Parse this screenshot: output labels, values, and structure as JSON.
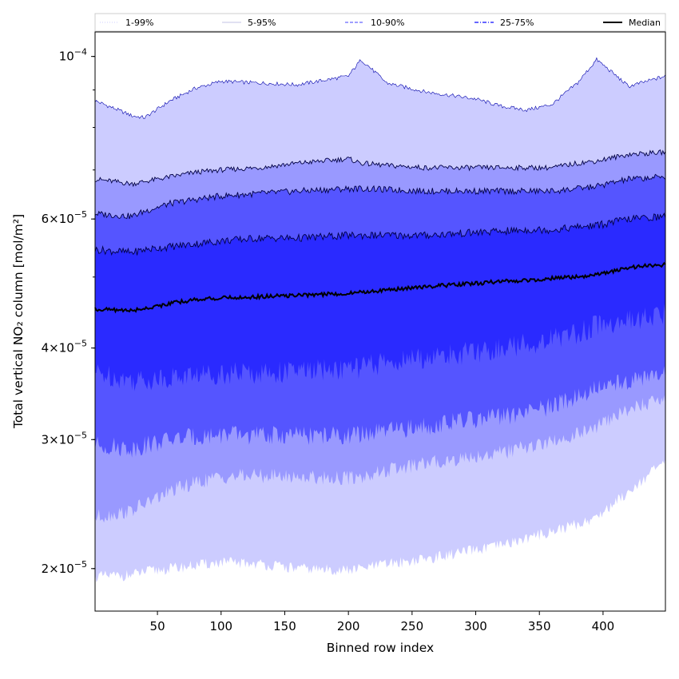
{
  "chart_data": {
    "type": "area",
    "title": "",
    "xlabel": "Binned row index",
    "ylabel": "Total vertical NO₂ column [mol/m²]",
    "xlim": [
      1,
      449
    ],
    "ylim": [
      1.75e-05,
      0.000108
    ],
    "yscale": "log",
    "xticks": [
      50,
      100,
      150,
      200,
      250,
      300,
      350,
      400
    ],
    "yticks": [
      {
        "value": 2e-05,
        "mantissa": "2",
        "base": "10",
        "exp": "−5"
      },
      {
        "value": 3e-05,
        "mantissa": "3",
        "base": "10",
        "exp": "−5"
      },
      {
        "value": 4e-05,
        "mantissa": "4",
        "base": "10",
        "exp": "−5"
      },
      {
        "value": 6e-05,
        "mantissa": "6",
        "base": "10",
        "exp": "−5"
      },
      {
        "value": 0.0001,
        "mantissa": "",
        "base": "10",
        "exp": "−4"
      }
    ],
    "x": [
      1,
      30,
      40,
      60,
      80,
      100,
      130,
      160,
      200,
      210,
      230,
      260,
      300,
      320,
      340,
      360,
      380,
      395,
      420,
      449
    ],
    "series": [
      {
        "name": "1-99%",
        "style": "dotted",
        "color": "#ccccff",
        "lower": [
          1.95,
          1.96,
          1.98,
          2.0,
          2.02,
          2.04,
          2.03,
          2.0,
          1.99,
          2.0,
          2.03,
          2.06,
          2.12,
          2.15,
          2.2,
          2.25,
          2.3,
          2.35,
          2.55,
          2.8
        ],
        "upper": [
          8.7,
          8.3,
          8.25,
          8.7,
          9.05,
          9.25,
          9.2,
          9.15,
          9.4,
          9.9,
          9.2,
          8.95,
          8.75,
          8.55,
          8.45,
          8.6,
          9.2,
          9.9,
          9.1,
          9.4
        ]
      },
      {
        "name": "5-95%",
        "style": "thin",
        "color": "#9999ff",
        "lower": [
          2.35,
          2.4,
          2.45,
          2.55,
          2.62,
          2.67,
          2.68,
          2.67,
          2.66,
          2.67,
          2.72,
          2.78,
          2.85,
          2.88,
          2.93,
          2.98,
          3.05,
          3.12,
          3.3,
          3.42
        ],
        "upper": [
          6.8,
          6.7,
          6.75,
          6.85,
          6.95,
          7.0,
          7.05,
          7.15,
          7.25,
          7.15,
          7.1,
          7.05,
          7.05,
          7.05,
          7.05,
          7.05,
          7.15,
          7.2,
          7.35,
          7.4
        ]
      },
      {
        "name": "10-90%",
        "style": "dashed",
        "color": "#5555ff",
        "lower": [
          2.95,
          2.92,
          2.95,
          3.0,
          3.03,
          3.05,
          3.04,
          3.04,
          3.04,
          3.05,
          3.08,
          3.13,
          3.2,
          3.22,
          3.27,
          3.33,
          3.45,
          3.52,
          3.62,
          3.68
        ],
        "upper": [
          6.1,
          6.05,
          6.15,
          6.3,
          6.38,
          6.45,
          6.5,
          6.55,
          6.6,
          6.6,
          6.58,
          6.55,
          6.55,
          6.55,
          6.55,
          6.55,
          6.6,
          6.65,
          6.8,
          6.85
        ]
      },
      {
        "name": "25-75%",
        "style": "dashdot",
        "color": "#2a2aff",
        "lower": [
          3.7,
          3.62,
          3.62,
          3.65,
          3.68,
          3.7,
          3.7,
          3.72,
          3.75,
          3.77,
          3.82,
          3.88,
          3.95,
          4.0,
          4.05,
          4.12,
          4.2,
          4.3,
          4.35,
          4.45
        ],
        "upper": [
          5.45,
          5.4,
          5.45,
          5.5,
          5.55,
          5.6,
          5.65,
          5.65,
          5.7,
          5.7,
          5.7,
          5.7,
          5.75,
          5.77,
          5.8,
          5.8,
          5.85,
          5.88,
          6.0,
          6.05
        ]
      },
      {
        "name": "Median",
        "style": "solid",
        "color": "#000000",
        "values": [
          4.52,
          4.5,
          4.53,
          4.6,
          4.66,
          4.68,
          4.7,
          4.72,
          4.75,
          4.77,
          4.8,
          4.85,
          4.9,
          4.93,
          4.95,
          4.98,
          5.0,
          5.03,
          5.15,
          5.2
        ]
      }
    ],
    "value_unit_scale": "1e-5",
    "legend": [
      "1-99%",
      "5-95%",
      "10-90%",
      "25-75%",
      "Median"
    ],
    "legend_position": "top",
    "grid": false
  }
}
